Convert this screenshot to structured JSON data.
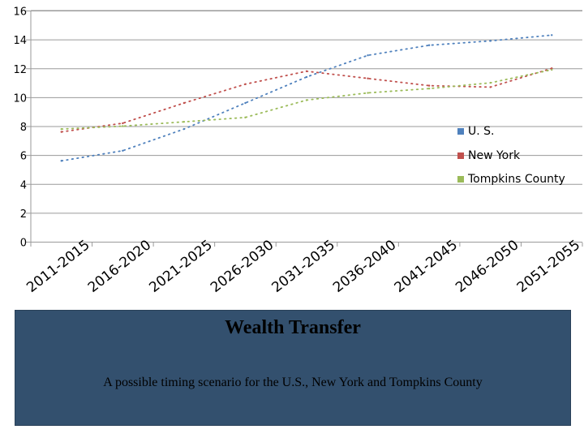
{
  "chart_data": {
    "type": "line",
    "categories": [
      "2011-2015",
      "2016-2020",
      "2021-2025",
      "2026-2030",
      "2031-2035",
      "2036-2040",
      "2041-2045",
      "2046-2050",
      "2051-2055"
    ],
    "ylim": [
      0,
      16
    ],
    "yticks": [
      0,
      2,
      4,
      6,
      8,
      10,
      12,
      14,
      16
    ],
    "grid": true,
    "legend_position": "right",
    "series": [
      {
        "name": "U. S.",
        "color": "#4f81bd",
        "values": [
          5.6,
          6.3,
          7.8,
          9.6,
          11.4,
          12.9,
          13.6,
          13.9,
          14.3
        ]
      },
      {
        "name": "New York",
        "color": "#c0504d",
        "values": [
          7.6,
          8.2,
          9.6,
          10.9,
          11.8,
          11.3,
          10.8,
          10.7,
          12.0
        ]
      },
      {
        "name": "Tompkins County",
        "color": "#9bbb59",
        "values": [
          7.8,
          8.0,
          8.3,
          8.6,
          9.8,
          10.3,
          10.6,
          11.0,
          11.9
        ]
      }
    ]
  },
  "panel": {
    "title": "Wealth Transfer",
    "subtitle": "A possible timing scenario for the U.S., New York and Tompkins County"
  }
}
